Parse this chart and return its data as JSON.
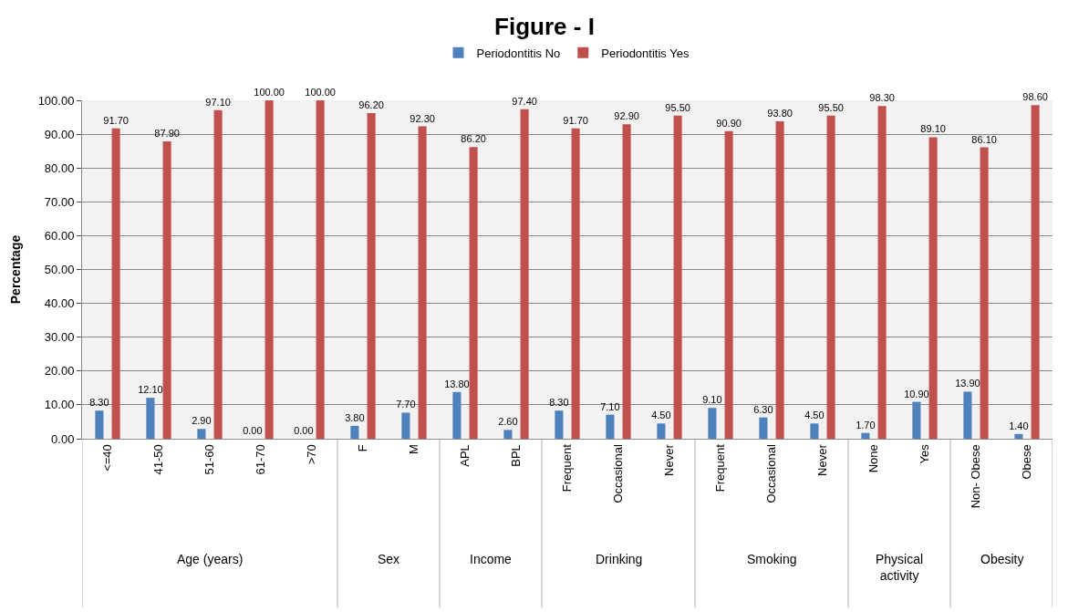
{
  "chart_data": {
    "type": "bar",
    "title": "Figure - I",
    "ylabel": "Percentage",
    "categories": [
      "<=40",
      "41-50",
      "51-60",
      "61-70",
      ">70",
      "F",
      "M",
      "APL",
      "BPL",
      "Frequent",
      "Occasional",
      "Never",
      "Frequent",
      "Occasional",
      "Never",
      "None",
      "Yes",
      "Non- Obese",
      "Obese"
    ],
    "series": [
      {
        "name": "Periodontitis No",
        "color": "#4f81bd",
        "values": [
          8.3,
          12.1,
          2.9,
          0,
          0,
          3.8,
          7.7,
          13.8,
          2.6,
          8.3,
          7.1,
          4.5,
          9.1,
          6.3,
          4.5,
          1.7,
          10.9,
          13.9,
          1.4
        ],
        "value_labels": [
          "8.30",
          "12.10",
          "2.90",
          "0.00",
          "0.00",
          "3.80",
          "7.70",
          "13.80",
          "2.60",
          "8.30",
          "7.10",
          "4.50",
          "9.10",
          "6.30",
          "4.50",
          "1.70",
          "10.90",
          "13.90",
          "1.40"
        ]
      },
      {
        "name": "Periodontitis Yes",
        "color": "#c0504d",
        "values": [
          91.7,
          87.9,
          97.1,
          100,
          100,
          96.2,
          92.3,
          86.2,
          97.4,
          91.7,
          92.9,
          95.5,
          90.9,
          93.8,
          95.5,
          98.3,
          89.1,
          86.1,
          98.6
        ],
        "value_labels": [
          "91.70",
          "87.90",
          "97.10",
          "100.00",
          "100.00",
          "96.20",
          "92.30",
          "86.20",
          "97.40",
          "91.70",
          "92.90",
          "95.50",
          "90.90",
          "93.80",
          "95.50",
          "98.30",
          "89.10",
          "86.10",
          "98.60"
        ]
      }
    ],
    "ylim": [
      0,
      100
    ],
    "yticks": [
      {
        "value": 0,
        "label": "0.00"
      },
      {
        "value": 10,
        "label": "10.00"
      },
      {
        "value": 20,
        "label": "20.00"
      },
      {
        "value": 30,
        "label": "30.00"
      },
      {
        "value": 40,
        "label": "40.00"
      },
      {
        "value": 50,
        "label": "50.00"
      },
      {
        "value": 60,
        "label": "60.00"
      },
      {
        "value": 70,
        "label": "70.00"
      },
      {
        "value": 80,
        "label": "80.00"
      },
      {
        "value": 90,
        "label": "90.00"
      },
      {
        "value": 100,
        "label": "100.00"
      }
    ],
    "grid": "y",
    "legend": "top",
    "annotations": [
      "Age (years)",
      "Sex",
      "Income",
      "Drinking",
      "Smoking",
      "Physical activity",
      "Obesity"
    ]
  }
}
